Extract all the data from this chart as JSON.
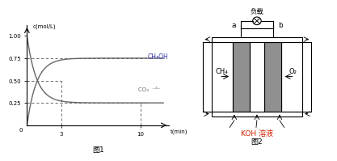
{
  "fig1": {
    "ylabel": "c(mol/L)",
    "xlabel": "t(min)",
    "ch3oh_label": "CH₃OH",
    "co2_label": "CO₃  ⁻⁴⁻",
    "curve_color": "#666666",
    "blue_color": "#3333aa",
    "dashed_color": "#555555",
    "label_fig": "图1",
    "decay_rate": 1.2
  },
  "fig2": {
    "title_load": "负载",
    "label_a": "a",
    "label_b": "b",
    "ch4_label": "CH₄",
    "o2_label": "O₂",
    "koh_label": "KOH 溶液",
    "label_fig": "图2",
    "dark_gray": "#909090",
    "mid_gray": "#c0c0c0",
    "koh_color": "#cc2200"
  }
}
